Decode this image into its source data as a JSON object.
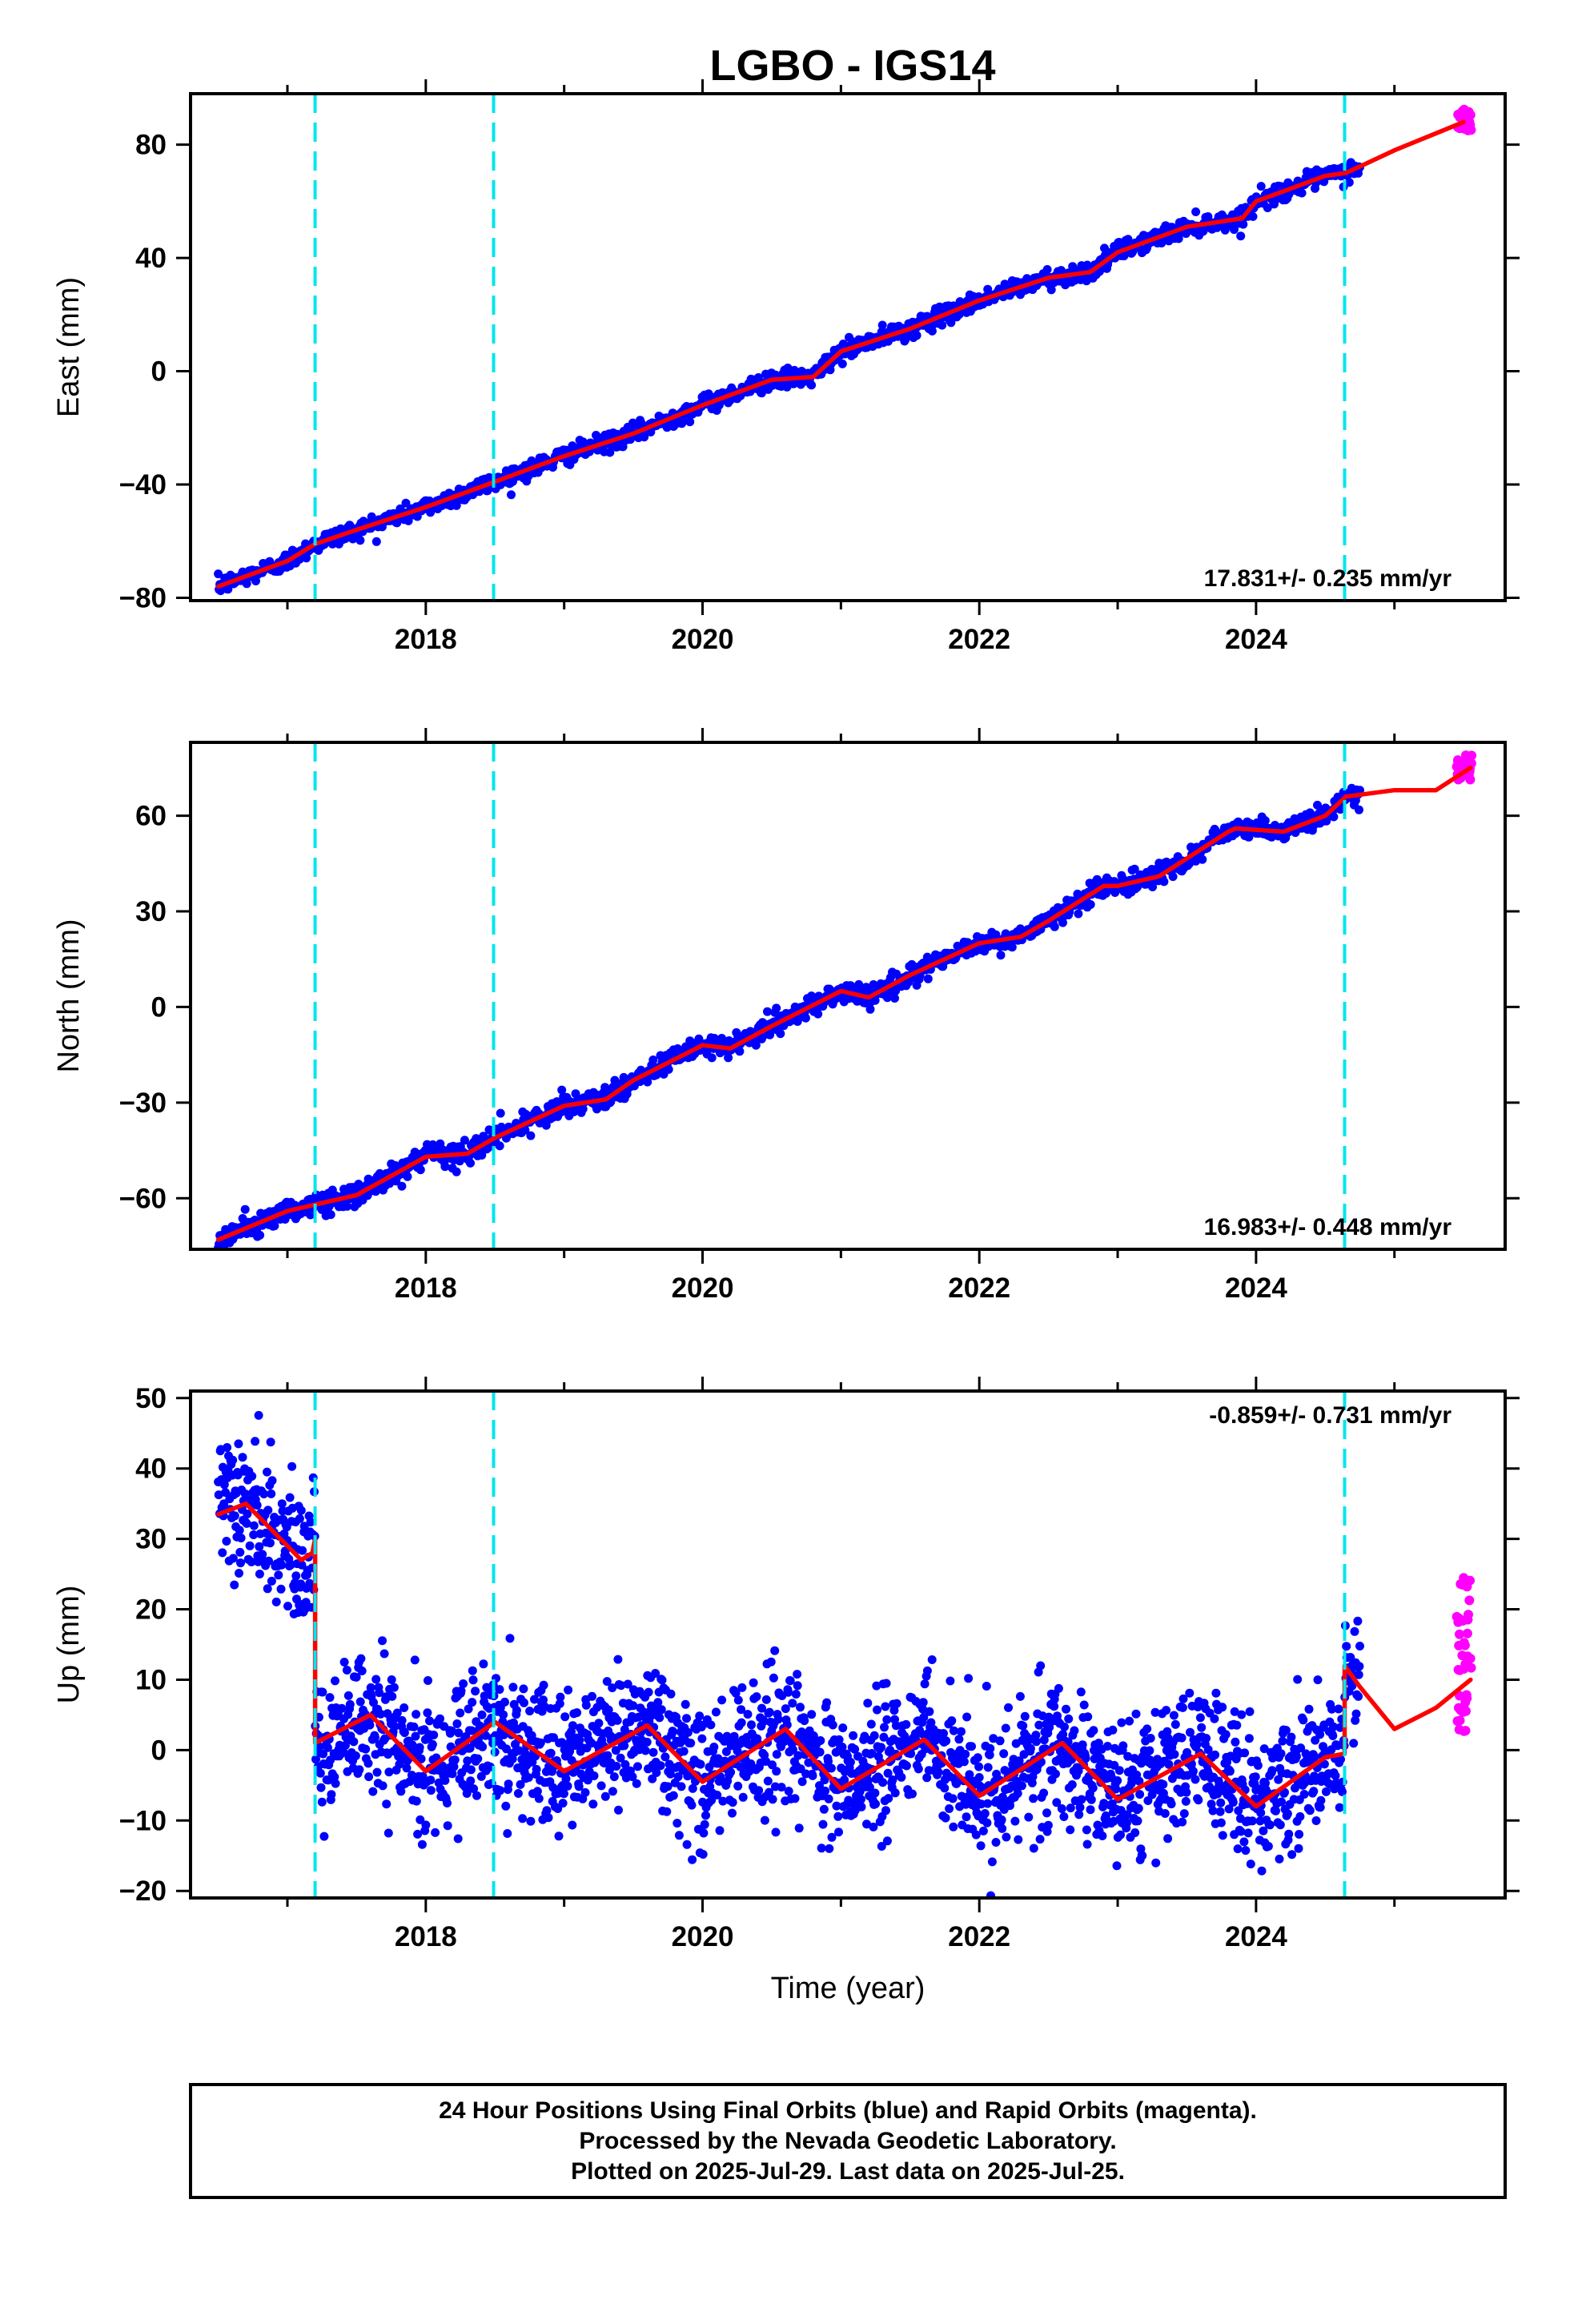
{
  "title": "LGBO - IGS14",
  "colors": {
    "final_orbits": "#0000ff",
    "rapid_orbits": "#ff00ff",
    "model": "#ff0000",
    "steps": "#00e5ee",
    "frame": "#000000"
  },
  "chart_data": [
    {
      "type": "scatter",
      "panel": "east",
      "ylabel": "East (mm)",
      "xlim": [
        2016.3,
        2025.8
      ],
      "ylim": [
        -81,
        98
      ],
      "yticks": [
        -80,
        -40,
        0,
        40,
        80
      ],
      "yticklabels": [
        "−80",
        "−40",
        "0",
        "40",
        "80"
      ],
      "xticks": [
        2018,
        2020,
        2022,
        2024
      ],
      "xticklabels": [
        "2018",
        "2020",
        "2022",
        "2024"
      ],
      "rate_text": "17.831+/- 0.235 mm/yr",
      "rate_position": "bottom-right",
      "step_epochs": [
        2017.2,
        2018.49,
        2024.64
      ],
      "noise": 1.6,
      "final_orbits": {
        "start": 2016.5,
        "end": 2024.75,
        "n": 1400
      },
      "rapid_orbits": {
        "start": 2025.45,
        "end": 2025.56,
        "n": 30,
        "values": [
          85,
          93
        ]
      },
      "series": [
        {
          "kind": "model",
          "x": [
            2016.5,
            2017.0,
            2017.2,
            2017.5,
            2018.0,
            2018.5,
            2019.0,
            2019.5,
            2020.0,
            2020.5,
            2020.8,
            2021.0,
            2021.5,
            2022.0,
            2022.5,
            2022.8,
            2023.0,
            2023.5,
            2023.9,
            2024.0,
            2024.5,
            2024.65,
            2025.0,
            2025.5
          ],
          "y": [
            -76,
            -67,
            -61,
            -56,
            -48,
            -39,
            -30,
            -22,
            -12,
            -3,
            -2,
            7,
            15,
            25,
            33,
            35,
            42,
            51,
            54,
            60,
            69,
            70,
            78,
            88
          ]
        }
      ]
    },
    {
      "type": "scatter",
      "panel": "north",
      "ylabel": "North (mm)",
      "xlim": [
        2016.3,
        2025.8
      ],
      "ylim": [
        -76,
        83
      ],
      "yticks": [
        -60,
        -30,
        0,
        30,
        60
      ],
      "yticklabels": [
        "−60",
        "−30",
        "0",
        "30",
        "60"
      ],
      "xticks": [
        2018,
        2020,
        2022,
        2024
      ],
      "xticklabels": [
        "2018",
        "2020",
        "2022",
        "2024"
      ],
      "rate_text": "16.983+/- 0.448 mm/yr",
      "rate_position": "bottom-right",
      "step_epochs": [
        2017.2,
        2018.49,
        2024.64
      ],
      "noise": 1.7,
      "final_orbits": {
        "start": 2016.5,
        "end": 2024.75,
        "n": 1400
      },
      "rapid_orbits": {
        "start": 2025.45,
        "end": 2025.56,
        "n": 30,
        "values": [
          71,
          79
        ]
      },
      "series": [
        {
          "kind": "model",
          "x": [
            2016.5,
            2017.0,
            2017.5,
            2018.0,
            2018.3,
            2018.5,
            2019.0,
            2019.3,
            2019.5,
            2020.0,
            2020.2,
            2020.5,
            2021.0,
            2021.2,
            2021.5,
            2022.0,
            2022.3,
            2022.5,
            2022.9,
            2023.0,
            2023.3,
            2023.8,
            2023.85,
            2024.2,
            2024.5,
            2024.65,
            2025.0,
            2025.3,
            2025.55
          ],
          "y": [
            -73,
            -64,
            -59,
            -47,
            -46,
            -41,
            -31,
            -29,
            -23,
            -12,
            -13,
            -6,
            5,
            3,
            10,
            20,
            22,
            27,
            38,
            38,
            41,
            55,
            56,
            55,
            60,
            66,
            68,
            68,
            75
          ]
        }
      ]
    },
    {
      "type": "scatter",
      "panel": "up",
      "ylabel": "Up (mm)",
      "xlabel": "Time (year)",
      "xlim": [
        2016.3,
        2025.8
      ],
      "ylim": [
        -21,
        51
      ],
      "yticks": [
        -20,
        -10,
        0,
        10,
        20,
        30,
        40,
        50
      ],
      "yticklabels": [
        "−20",
        "−10",
        "0",
        "10",
        "20",
        "30",
        "40",
        "50"
      ],
      "xticks": [
        2018,
        2020,
        2022,
        2024
      ],
      "xticklabels": [
        "2018",
        "2020",
        "2022",
        "2024"
      ],
      "rate_text": "-0.859+/- 0.731 mm/yr",
      "rate_position": "top-right",
      "step_epochs": [
        2017.2,
        2018.49,
        2024.64
      ],
      "noise": 4.8,
      "final_orbits": {
        "start": 2016.5,
        "end": 2024.75,
        "n": 2200
      },
      "rapid_orbits": {
        "start": 2025.45,
        "end": 2025.56,
        "n": 40,
        "values": [
          1,
          25
        ]
      },
      "series": [
        {
          "kind": "model",
          "x": [
            2016.5,
            2016.7,
            2016.9,
            2017.1,
            2017.18,
            2017.2,
            2017.2,
            2017.6,
            2018.0,
            2018.5,
            2019.0,
            2019.6,
            2020.0,
            2020.6,
            2021.0,
            2021.6,
            2022.0,
            2022.6,
            2023.0,
            2023.6,
            2024.0,
            2024.5,
            2024.64,
            2024.64,
            2024.75,
            2025.0,
            2025.3,
            2025.55
          ],
          "y": [
            33.5,
            35,
            31,
            27,
            28,
            30,
            1,
            5,
            -3,
            4,
            -3,
            3.5,
            -4.5,
            3,
            -5.5,
            1.5,
            -6.5,
            1,
            -7,
            -0.5,
            -8,
            -1,
            -0.5,
            12,
            9,
            3,
            6,
            10
          ]
        }
      ]
    }
  ],
  "footer": {
    "line1": "24 Hour Positions Using Final Orbits (blue) and Rapid Orbits (magenta).",
    "line2": "Processed by the Nevada Geodetic Laboratory.",
    "line3": "Plotted on 2025-Jul-29. Last data on 2025-Jul-25."
  }
}
